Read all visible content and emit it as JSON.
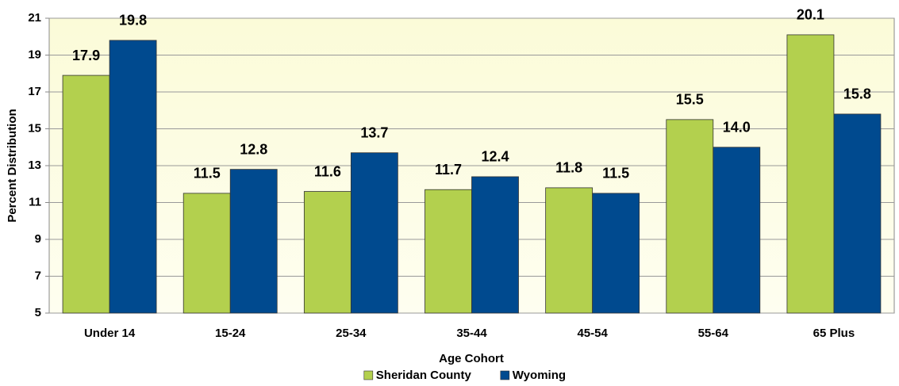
{
  "chart_data": {
    "type": "bar",
    "x_label": "Age Cohort",
    "y_label": "Percent Distribution",
    "categories": [
      "Under 14",
      "15-24",
      "25-34",
      "35-44",
      "45-54",
      "55-64",
      "65 Plus"
    ],
    "series": [
      {
        "name": "Sheridan County",
        "color": "#b3d04e",
        "values": [
          17.9,
          11.5,
          11.6,
          11.7,
          11.8,
          15.5,
          20.1
        ],
        "value_labels": [
          "17.9",
          "11.5",
          "11.6",
          "11.7",
          "11.8",
          "15.5",
          "20.1"
        ]
      },
      {
        "name": "Wyoming",
        "color": "#004a8f",
        "values": [
          19.8,
          12.8,
          13.7,
          12.4,
          11.5,
          14.0,
          15.8
        ],
        "value_labels": [
          "19.8",
          "12.8",
          "13.7",
          "12.4",
          "11.5",
          "14.0",
          "15.8"
        ]
      }
    ],
    "ylim": [
      5,
      21
    ],
    "yticks": [
      5,
      7,
      9,
      11,
      13,
      15,
      17,
      19,
      21
    ],
    "grid": true,
    "legend": "bottom"
  }
}
